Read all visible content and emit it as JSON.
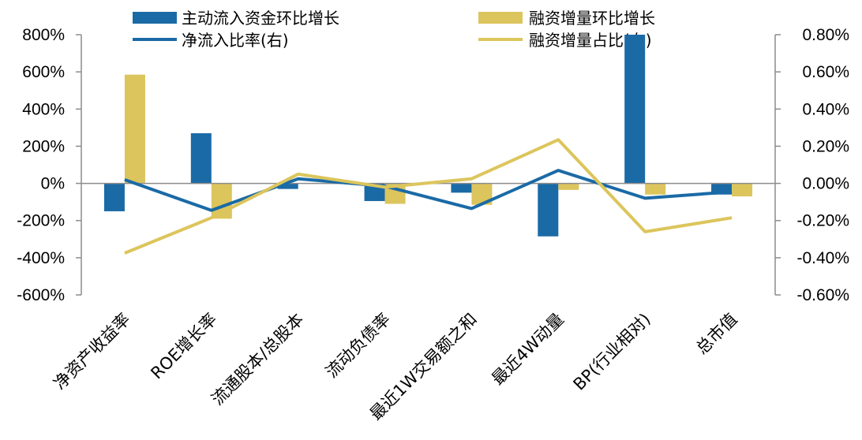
{
  "chart_data": {
    "type": "bar",
    "categories": [
      "净资产收益率",
      "ROE增长率",
      "流通股本/总股本",
      "流动负债率",
      "最近1W交易额之和",
      "最近4W动量",
      "BP(行业相对)",
      "总市值"
    ],
    "left_axis": {
      "min": -600,
      "max": 800,
      "step": 200,
      "suffix": "%",
      "decimals": 0
    },
    "right_axis": {
      "min": -0.6,
      "max": 0.8,
      "step": 0.2,
      "suffix": "%",
      "decimals": 2
    },
    "series": [
      {
        "name": "主动流入资金环比增长",
        "kind": "bar",
        "axis": "left",
        "color": "#1a6aa6",
        "values": [
          -150,
          270,
          -30,
          -95,
          -50,
          -285,
          800,
          -60
        ]
      },
      {
        "name": "融资增量环比增长",
        "kind": "bar",
        "axis": "left",
        "color": "#dcc55c",
        "values": [
          585,
          -190,
          0,
          -110,
          -115,
          -35,
          -60,
          -70
        ]
      },
      {
        "name": "净流入比率(右)",
        "kind": "line",
        "axis": "right",
        "color": "#1a6aa6",
        "values": [
          0.02,
          -0.145,
          0.025,
          -0.015,
          -0.135,
          0.07,
          -0.08,
          -0.045
        ]
      },
      {
        "name": "融资增量占比(右)",
        "kind": "line",
        "axis": "right",
        "color": "#dcc55c",
        "values": [
          -0.375,
          -0.185,
          0.05,
          -0.02,
          0.025,
          0.235,
          -0.26,
          -0.185
        ]
      }
    ]
  }
}
